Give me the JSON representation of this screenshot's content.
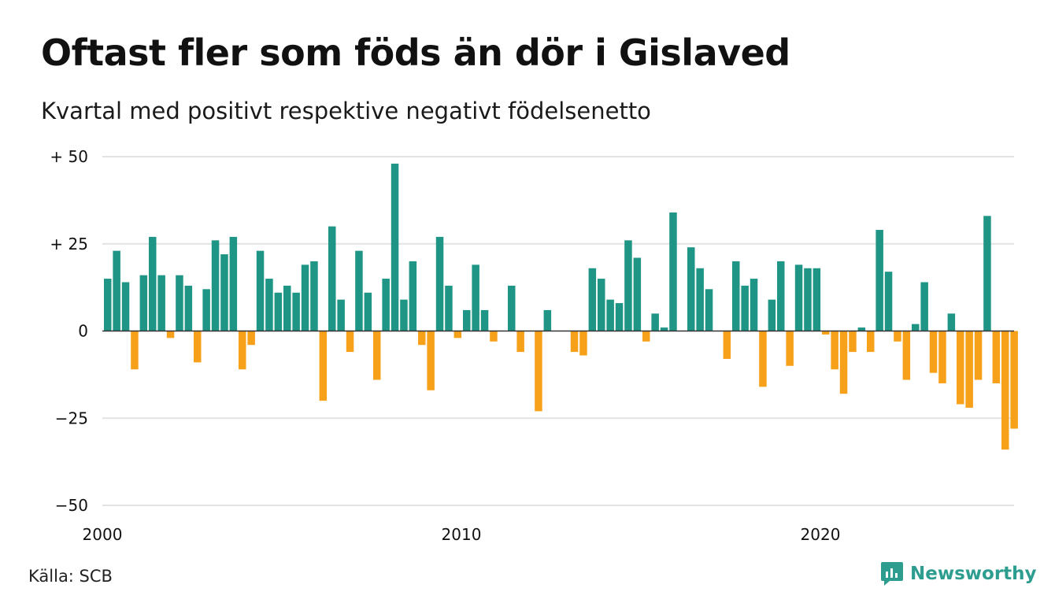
{
  "title": "Oftast fler som föds än dör i Gislaved",
  "subtitle": "Kvartal med positivt respektive negativt födelsenetto",
  "source": "Källa: SCB",
  "brand": "Newsworthy",
  "colors": {
    "positive": "#1f9585",
    "negative": "#f7a11a",
    "grid": "#e2e2e2",
    "axis": "#333333",
    "brand": "#2d9d8f"
  },
  "icons": {
    "logo": "newsworthy-chart-bubble-icon"
  },
  "chart_data": {
    "type": "bar",
    "x_start": "2000 Q1",
    "interval": "quarter",
    "values": [
      15,
      23,
      14,
      -11,
      16,
      27,
      16,
      -2,
      16,
      13,
      -9,
      12,
      26,
      22,
      27,
      -11,
      -4,
      23,
      15,
      11,
      13,
      11,
      19,
      20,
      -20,
      30,
      9,
      -6,
      23,
      11,
      -14,
      15,
      48,
      9,
      20,
      -4,
      -17,
      27,
      13,
      -2,
      6,
      19,
      6,
      -3,
      0,
      13,
      -6,
      0,
      -23,
      6,
      0,
      0,
      -6,
      -7,
      18,
      15,
      9,
      8,
      26,
      21,
      -3,
      5,
      1,
      34,
      0,
      24,
      18,
      12,
      0,
      -8,
      20,
      13,
      15,
      -16,
      9,
      20,
      -10,
      19,
      18,
      18,
      -1,
      -11,
      -18,
      -6,
      1,
      -6,
      29,
      17,
      -3,
      -14,
      2,
      14,
      -12,
      -15,
      5,
      -21,
      -22,
      -14,
      33,
      -15,
      -34,
      -28
    ],
    "ylim": [
      -50,
      50
    ],
    "yticks": [
      50,
      25,
      0,
      -25,
      -50
    ],
    "ytick_labels": [
      "+ 50",
      "+ 25",
      "0",
      "−25",
      "−50"
    ],
    "xticks": [
      {
        "label": "2000",
        "index": 0
      },
      {
        "label": "2010",
        "index": 40
      },
      {
        "label": "2020",
        "index": 80
      }
    ],
    "xlabel": "",
    "ylabel": "",
    "grid": true,
    "legend": "none"
  }
}
